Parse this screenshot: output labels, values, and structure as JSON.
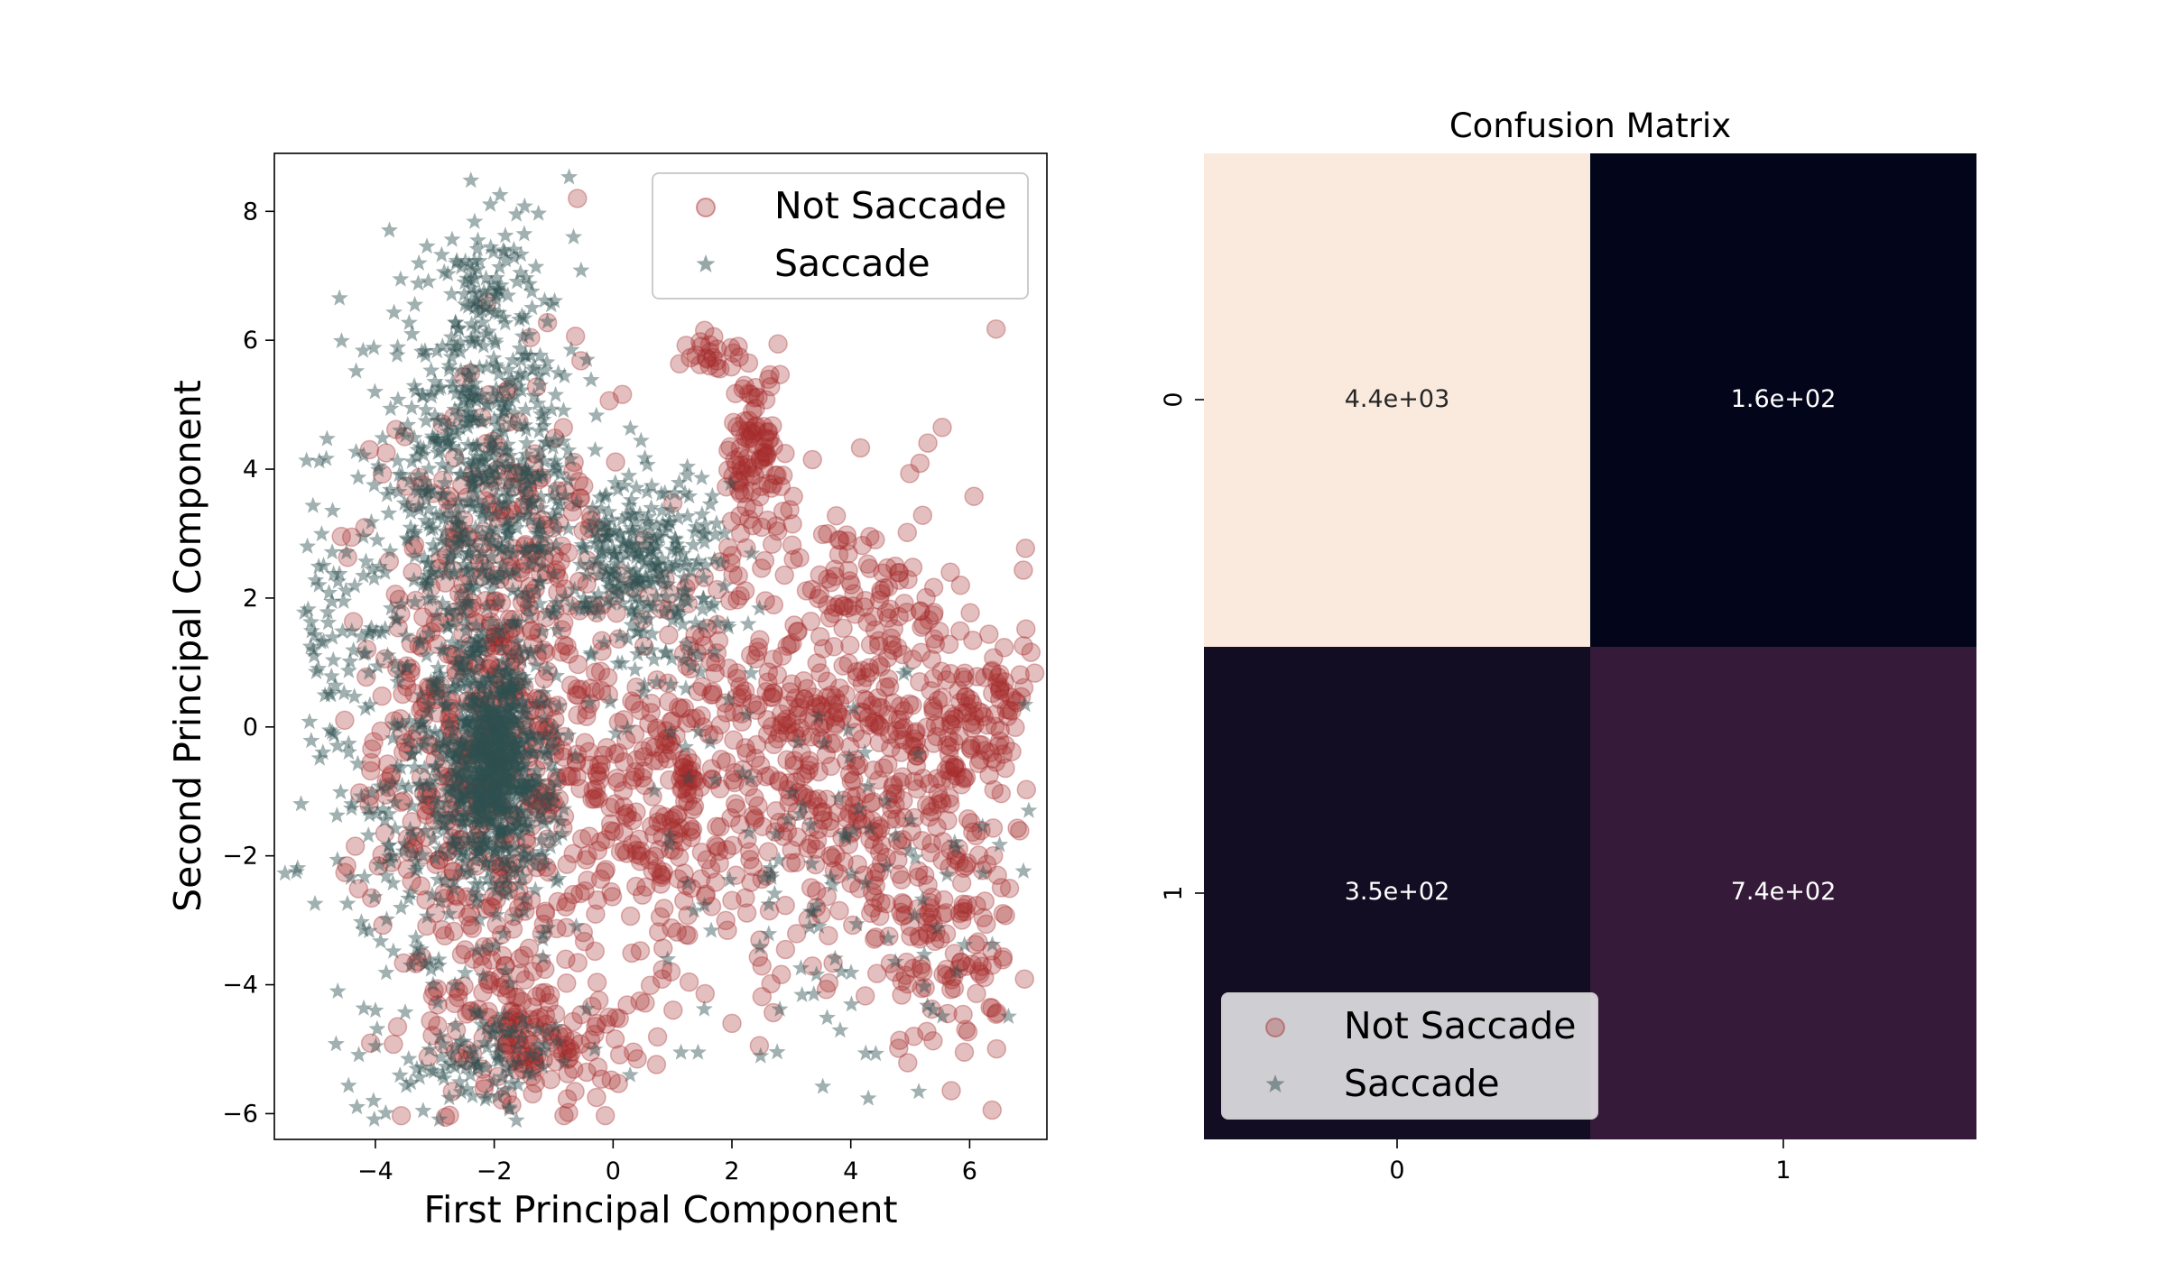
{
  "chart_data": [
    {
      "type": "scatter",
      "title": "",
      "xlabel": "First Principal Component",
      "ylabel": "Second Principal Component",
      "xlim": [
        -5.7,
        7.3
      ],
      "ylim": [
        -6.4,
        8.9
      ],
      "xticks": [
        "−4",
        "−2",
        "0",
        "2",
        "4",
        "6"
      ],
      "xtick_values": [
        -4,
        -2,
        0,
        2,
        4,
        6
      ],
      "yticks": [
        "−6",
        "−4",
        "−2",
        "0",
        "2",
        "4",
        "6",
        "8"
      ],
      "ytick_values": [
        -6,
        -4,
        -2,
        0,
        2,
        4,
        6,
        8
      ],
      "legend_position": "top-right",
      "series": [
        {
          "name": "Not Saccade",
          "marker": "circle",
          "color": "#a52a2a",
          "clusters": [
            {
              "cx": -2.0,
              "cy": 0.0,
              "sx": 1.0,
              "sy": 2.6,
              "n": 700
            },
            {
              "cx": 3.8,
              "cy": 0.0,
              "sx": 1.6,
              "sy": 1.8,
              "n": 650
            },
            {
              "cx": 0.8,
              "cy": -1.2,
              "sx": 0.8,
              "sy": 1.3,
              "n": 200
            },
            {
              "cx": 2.4,
              "cy": 4.2,
              "sx": 0.25,
              "sy": 0.7,
              "n": 90
            },
            {
              "cx": -1.3,
              "cy": -4.8,
              "sx": 0.8,
              "sy": 0.5,
              "n": 130
            },
            {
              "cx": 5.6,
              "cy": -3.3,
              "sx": 0.6,
              "sy": 1.0,
              "n": 110
            },
            {
              "cx": 6.3,
              "cy": 0.0,
              "sx": 0.4,
              "sy": 0.8,
              "n": 80
            },
            {
              "cx": 1.7,
              "cy": 5.8,
              "sx": 0.25,
              "sy": 0.2,
              "n": 25
            },
            {
              "cx": -0.6,
              "cy": 8.2,
              "sx": 0.0,
              "sy": 0.0,
              "n": 1
            },
            {
              "cx": 2.0,
              "cy": -4.6,
              "sx": 0.0,
              "sy": 0.0,
              "n": 1
            }
          ]
        },
        {
          "name": "Saccade",
          "marker": "star",
          "color": "#2f4f4f",
          "clusters": [
            {
              "cx": -2.0,
              "cy": -0.6,
              "sx": 0.45,
              "sy": 0.8,
              "n": 700
            },
            {
              "cx": -2.2,
              "cy": 4.0,
              "sx": 0.8,
              "sy": 1.6,
              "n": 600
            },
            {
              "cx": 0.5,
              "cy": 2.5,
              "sx": 0.7,
              "sy": 0.8,
              "n": 300
            },
            {
              "cx": -3.0,
              "cy": -1.0,
              "sx": 1.0,
              "sy": 2.5,
              "n": 350
            },
            {
              "cx": 3.5,
              "cy": -2.5,
              "sx": 1.8,
              "sy": 1.6,
              "n": 120
            },
            {
              "cx": -4.8,
              "cy": 1.5,
              "sx": 0.2,
              "sy": 1.8,
              "n": 40
            },
            {
              "cx": -2.0,
              "cy": -5.2,
              "sx": 0.7,
              "sy": 0.4,
              "n": 80
            },
            {
              "cx": -2.1,
              "cy": 7.0,
              "sx": 0.3,
              "sy": 0.4,
              "n": 30
            }
          ]
        }
      ]
    },
    {
      "type": "heatmap",
      "title": "Confusion Matrix",
      "xticks": [
        "0",
        "1"
      ],
      "yticks": [
        "0",
        "1"
      ],
      "values": [
        [
          4400,
          160
        ],
        [
          350,
          740
        ]
      ],
      "labels": [
        [
          "4.4e+03",
          "1.6e+02"
        ],
        [
          "3.5e+02",
          "7.4e+02"
        ]
      ],
      "colors": [
        [
          "#faeade",
          "#03051a"
        ],
        [
          "#120d22",
          "#351a3a"
        ]
      ],
      "label_colors": [
        [
          "#262626",
          "#ffffff"
        ],
        [
          "#ffffff",
          "#ffffff"
        ]
      ],
      "legend_position": "bottom-left",
      "legend": [
        "Not Saccade",
        "Saccade"
      ]
    }
  ]
}
